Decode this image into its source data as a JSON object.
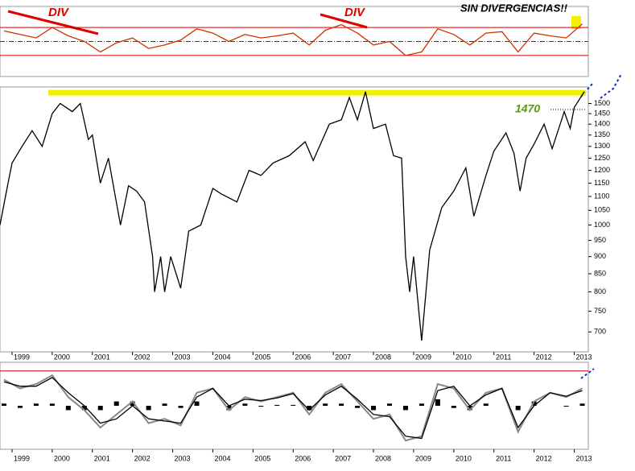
{
  "chart_data": [
    {
      "type": "line",
      "x": [
        1998.8,
        1999.2,
        1999.6,
        2000.0,
        2000.4,
        2000.8,
        2001.2,
        2001.6,
        2002.0,
        2002.4,
        2002.8,
        2003.2,
        2003.6,
        2004.0,
        2004.4,
        2004.8,
        2005.2,
        2005.6,
        2006.0,
        2006.4,
        2006.8,
        2007.2,
        2007.6,
        2008.0,
        2008.4,
        2008.8,
        2009.2,
        2009.6,
        2010.0,
        2010.4,
        2010.8,
        2011.2,
        2011.6,
        2012.0,
        2012.4,
        2012.8,
        2013.2
      ],
      "series": [
        {
          "color": "#cc3300",
          "values": [
            65,
            60,
            55,
            70,
            58,
            50,
            35,
            48,
            55,
            40,
            45,
            52,
            68,
            62,
            50,
            60,
            55,
            58,
            62,
            45,
            66,
            74,
            62,
            45,
            50,
            30,
            35,
            68,
            60,
            45,
            62,
            64,
            35,
            62,
            58,
            55,
            75
          ]
        }
      ],
      "xlim": [
        1998.7,
        2013.35
      ],
      "ylim": [
        0,
        100
      ],
      "reference_lines": [
        30,
        50,
        70
      ],
      "annotations": [
        {
          "text": "DIV"
        },
        {
          "text": "DIV"
        },
        {
          "text": "SIN DIVERGENCIAS!!"
        }
      ]
    },
    {
      "type": "line",
      "x": [
        1998.7,
        1998.9,
        1999.0,
        1999.25,
        1999.5,
        1999.75,
        2000.0,
        2000.2,
        2000.5,
        2000.7,
        2000.9,
        2001.0,
        2001.2,
        2001.4,
        2001.7,
        2001.9,
        2002.1,
        2002.3,
        2002.5,
        2002.55,
        2002.7,
        2002.8,
        2002.95,
        2003.2,
        2003.4,
        2003.7,
        2004.0,
        2004.2,
        2004.6,
        2004.9,
        2005.2,
        2005.5,
        2005.9,
        2006.3,
        2006.5,
        2006.9,
        2007.2,
        2007.4,
        2007.6,
        2007.8,
        2008.0,
        2008.3,
        2008.5,
        2008.7,
        2008.8,
        2008.9,
        2009.0,
        2009.2,
        2009.4,
        2009.7,
        2010.0,
        2010.3,
        2010.5,
        2010.8,
        2011.0,
        2011.3,
        2011.5,
        2011.65,
        2011.8,
        2012.0,
        2012.25,
        2012.45,
        2012.75,
        2012.9,
        2013.0,
        2013.25
      ],
      "series": [
        {
          "color": "#000000",
          "values": [
            1000,
            1150,
            1230,
            1300,
            1370,
            1300,
            1450,
            1500,
            1460,
            1500,
            1330,
            1350,
            1150,
            1250,
            1000,
            1140,
            1120,
            1080,
            900,
            800,
            900,
            800,
            900,
            810,
            980,
            1000,
            1130,
            1110,
            1080,
            1200,
            1180,
            1230,
            1260,
            1320,
            1240,
            1400,
            1420,
            1530,
            1420,
            1560,
            1380,
            1400,
            1260,
            1250,
            900,
            800,
            900,
            680,
            920,
            1060,
            1120,
            1210,
            1030,
            1180,
            1280,
            1360,
            1270,
            1120,
            1250,
            1310,
            1400,
            1290,
            1460,
            1380,
            1480,
            1560
          ]
        }
      ],
      "log_scale": true,
      "xlim": [
        1998.7,
        2013.35
      ],
      "ylim": [
        655,
        1585
      ],
      "yticks": [
        700,
        750,
        800,
        850,
        900,
        950,
        1000,
        1050,
        1100,
        1150,
        1200,
        1250,
        1300,
        1350,
        1400,
        1450,
        1500
      ],
      "xticks": [
        1999,
        2000,
        2001,
        2002,
        2003,
        2004,
        2005,
        2006,
        2007,
        2008,
        2009,
        2010,
        2011,
        2012,
        2013
      ],
      "resistance": 1555,
      "annotations": [
        {
          "text": "1470",
          "value": 1470,
          "color": "#5a9a1a"
        }
      ]
    },
    {
      "type": "line",
      "x": [
        1998.8,
        1999.2,
        1999.6,
        2000.0,
        2000.4,
        2000.8,
        2001.2,
        2001.6,
        2002.0,
        2002.4,
        2002.8,
        2003.2,
        2003.6,
        2004.0,
        2004.4,
        2004.8,
        2005.2,
        2005.6,
        2006.0,
        2006.4,
        2006.8,
        2007.2,
        2007.6,
        2008.0,
        2008.4,
        2008.8,
        2009.2,
        2009.6,
        2010.0,
        2010.4,
        2010.8,
        2011.2,
        2011.6,
        2012.0,
        2012.4,
        2012.8,
        2013.2
      ],
      "series": [
        {
          "color": "#888888",
          "values": [
            60,
            40,
            50,
            70,
            20,
            -10,
            -50,
            -20,
            10,
            -40,
            -30,
            -45,
            30,
            40,
            -10,
            20,
            10,
            20,
            30,
            -20,
            30,
            50,
            10,
            -30,
            -20,
            -80,
            -70,
            50,
            40,
            -10,
            30,
            40,
            -60,
            10,
            30,
            20,
            40
          ]
        },
        {
          "color": "#000000",
          "values": [
            55,
            45,
            45,
            65,
            30,
            0,
            -40,
            -30,
            0,
            -30,
            -35,
            -40,
            20,
            40,
            0,
            15,
            12,
            18,
            28,
            -10,
            25,
            45,
            15,
            -20,
            -25,
            -70,
            -75,
            35,
            45,
            0,
            25,
            40,
            -50,
            0,
            30,
            22,
            35
          ]
        }
      ],
      "bars": {
        "color": "#000000",
        "values": [
          5,
          -5,
          5,
          5,
          -10,
          -10,
          -10,
          10,
          10,
          -10,
          5,
          -5,
          10,
          0,
          -10,
          5,
          -2,
          2,
          2,
          -10,
          5,
          5,
          -5,
          -10,
          5,
          -10,
          5,
          15,
          -5,
          -10,
          5,
          0,
          -10,
          10,
          0,
          -2,
          5
        ]
      },
      "xlim": [
        1998.7,
        2013.35
      ],
      "ylim": [
        -100,
        100
      ],
      "reference_lines": [
        80
      ],
      "xticks": [
        1999,
        2000,
        2001,
        2002,
        2003,
        2004,
        2005,
        2006,
        2007,
        2008,
        2009,
        2010,
        2011,
        2012,
        2013
      ]
    }
  ]
}
